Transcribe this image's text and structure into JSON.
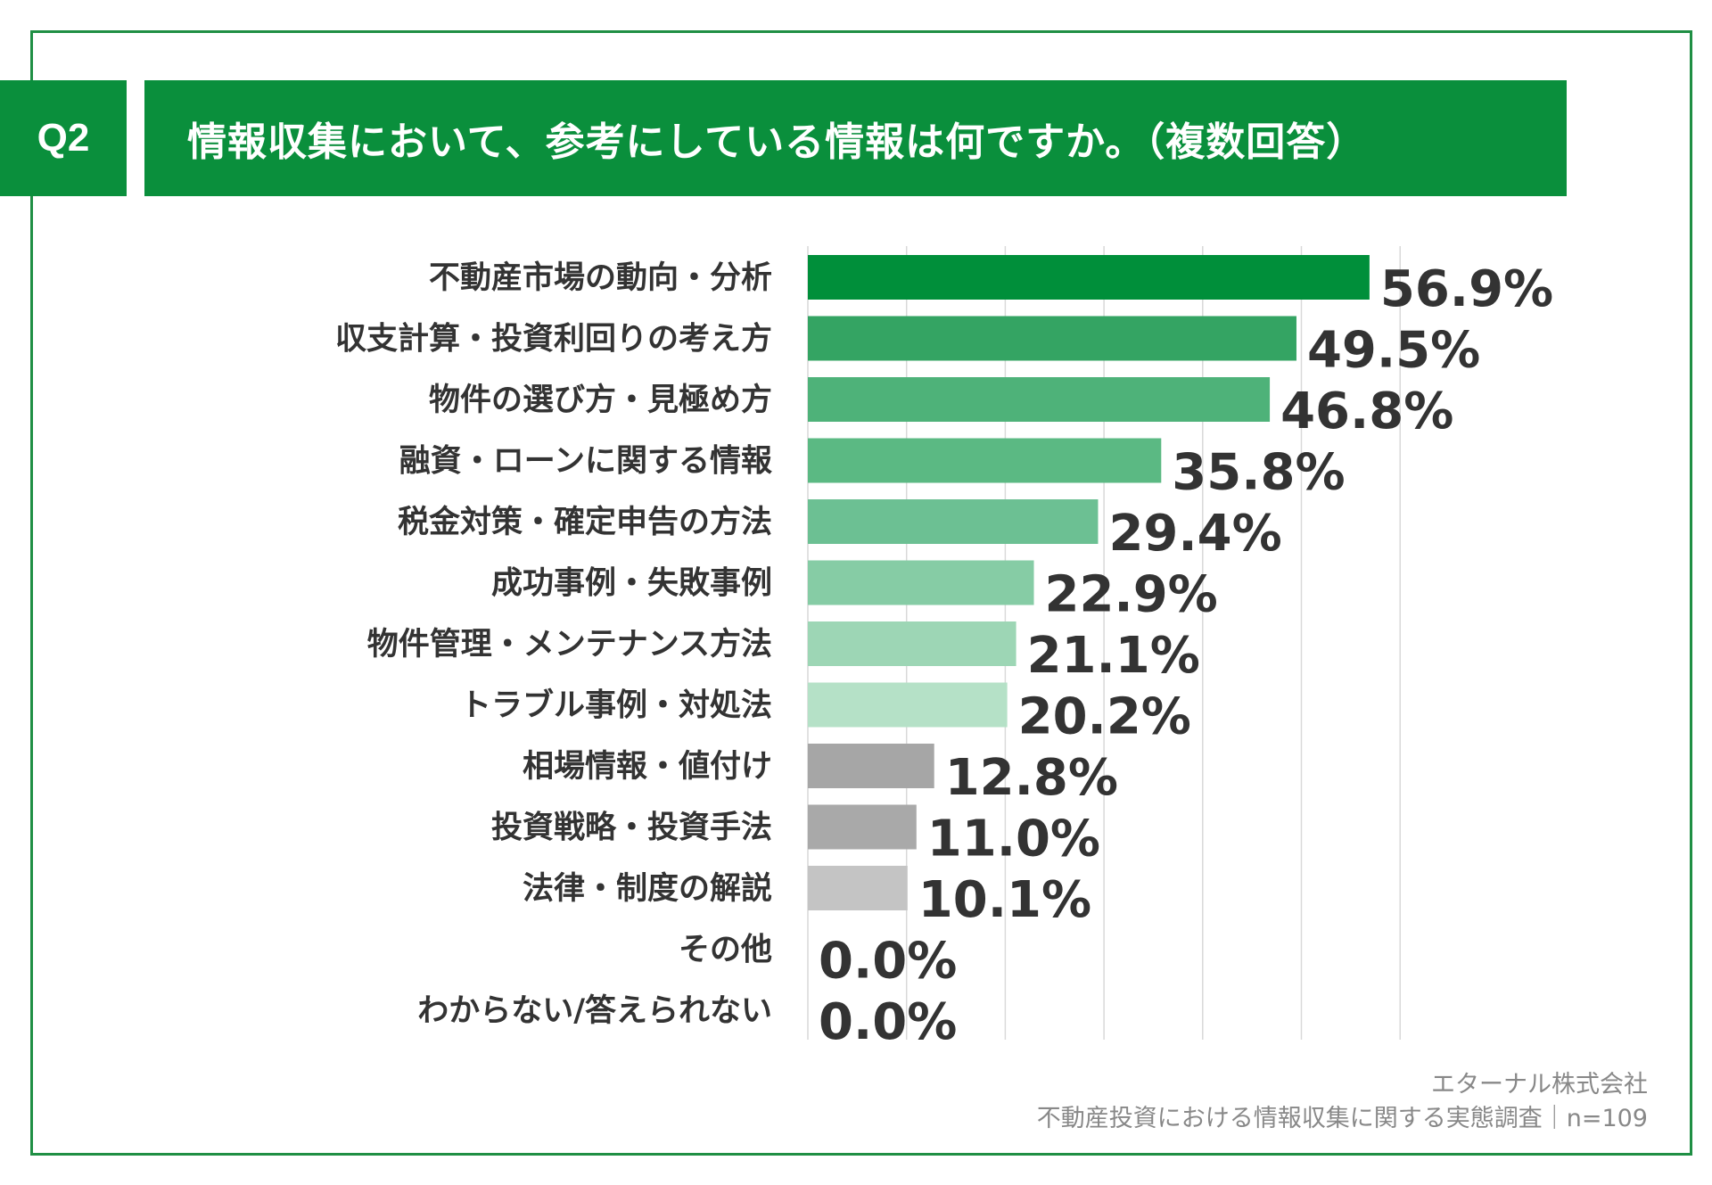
{
  "header": {
    "question_no": "Q2",
    "title": "情報収集において、参考にしている情報は何ですか。（複数回答）"
  },
  "source": {
    "company": "エターナル株式会社",
    "survey": "不動産投資における情報収集に関する実態調査｜n=109"
  },
  "colors": {
    "brand": "#0a8f3c",
    "frame": "#1f8f44",
    "text": "#333333"
  },
  "chart_data": {
    "type": "bar",
    "orientation": "horizontal",
    "title": "情報収集において、参考にしている情報は何ですか。（複数回答）",
    "xlim": [
      0,
      60
    ],
    "grid": true,
    "categories": [
      "不動産市場の動向・分析",
      "収支計算・投資利回りの考え方",
      "物件の選び方・見極め方",
      "融資・ローンに関する情報",
      "税金対策・確定申告の方法",
      "成功事例・失敗事例",
      "物件管理・メンテナンス方法",
      "トラブル事例・対処法",
      "相場情報・値付け",
      "投資戦略・投資手法",
      "法律・制度の解説",
      "その他",
      "わからない/答えられない"
    ],
    "values": [
      56.9,
      49.5,
      46.8,
      35.8,
      29.4,
      22.9,
      21.1,
      20.2,
      12.8,
      11.0,
      10.1,
      0.0,
      0.0
    ],
    "value_labels": [
      "56.9%",
      "49.5%",
      "46.8%",
      "35.8%",
      "29.4%",
      "22.9%",
      "21.1%",
      "20.2%",
      "12.8%",
      "11.0%",
      "10.1%",
      "0.0%",
      "0.0%"
    ],
    "bar_colors": [
      "#008f3a",
      "#34a463",
      "#4eb279",
      "#5bb983",
      "#6cc093",
      "#86cca5",
      "#9dd6b5",
      "#b5e1c7",
      "#a6a6a6",
      "#a9a9a9",
      "#c4c4c4",
      "#c4c4c4",
      "#c4c4c4"
    ]
  }
}
